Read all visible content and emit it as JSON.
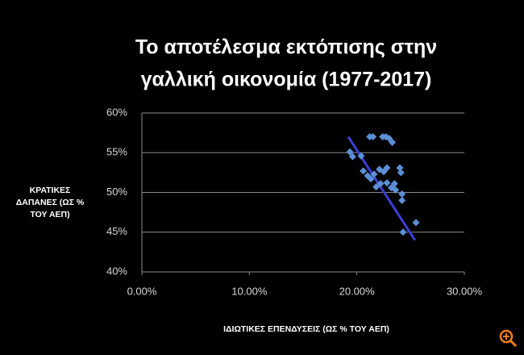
{
  "chart_data": {
    "type": "scatter",
    "title": [
      "Το αποτέλεσμα εκτόπισης στην",
      "γαλλική οικονομία (1977-2017)"
    ],
    "x_label": "ΙΔΙΩΤΙΚΕΣ ΕΠΕΝΔΥΣΕΙΣ (ΩΣ % ΤΟΥ ΑΕΠ)",
    "y_label": [
      "ΚΡΑΤΙΚΕΣ",
      "ΔΑΠΑΝΕΣ (ΩΣ %",
      "ΤΟΥ ΑΕΠ)"
    ],
    "xlim": [
      0,
      30
    ],
    "ylim": [
      40,
      60
    ],
    "xticks": [
      {
        "value": 0,
        "label": "0.00%"
      },
      {
        "value": 10,
        "label": "10.00%"
      },
      {
        "value": 20,
        "label": "20.00%"
      },
      {
        "value": 30,
        "label": "30.00%"
      }
    ],
    "yticks": [
      {
        "value": 40,
        "label": "40%"
      },
      {
        "value": 45,
        "label": "45%"
      },
      {
        "value": 50,
        "label": "50%"
      },
      {
        "value": 55,
        "label": "55%"
      },
      {
        "value": 60,
        "label": "60%"
      }
    ],
    "grid": true,
    "color": "#5b8fd6",
    "x": [
      19.35,
      19.6,
      20.4,
      21.2,
      21.5,
      22.4,
      22.7,
      23.0,
      23.3,
      20.6,
      21.0,
      21.3,
      21.6,
      22.1,
      22.5,
      21.8,
      22.2,
      22.8,
      23.2,
      23.5,
      24.0,
      24.1,
      23.6,
      24.2,
      24.2,
      24.3,
      25.5,
      22.8
    ],
    "y": [
      55.1,
      54.5,
      54.6,
      57.0,
      57.0,
      57.0,
      57.0,
      56.8,
      56.3,
      52.7,
      52.1,
      51.7,
      52.3,
      52.9,
      52.6,
      50.7,
      51.1,
      51.2,
      50.6,
      51.1,
      53.1,
      52.5,
      50.3,
      49.8,
      49.0,
      45.0,
      46.2,
      53.1
    ],
    "trendline": {
      "x": [
        19.2,
        25.4
      ],
      "y": [
        57.0,
        44.0
      ],
      "color": "#3b3fd6"
    }
  }
}
